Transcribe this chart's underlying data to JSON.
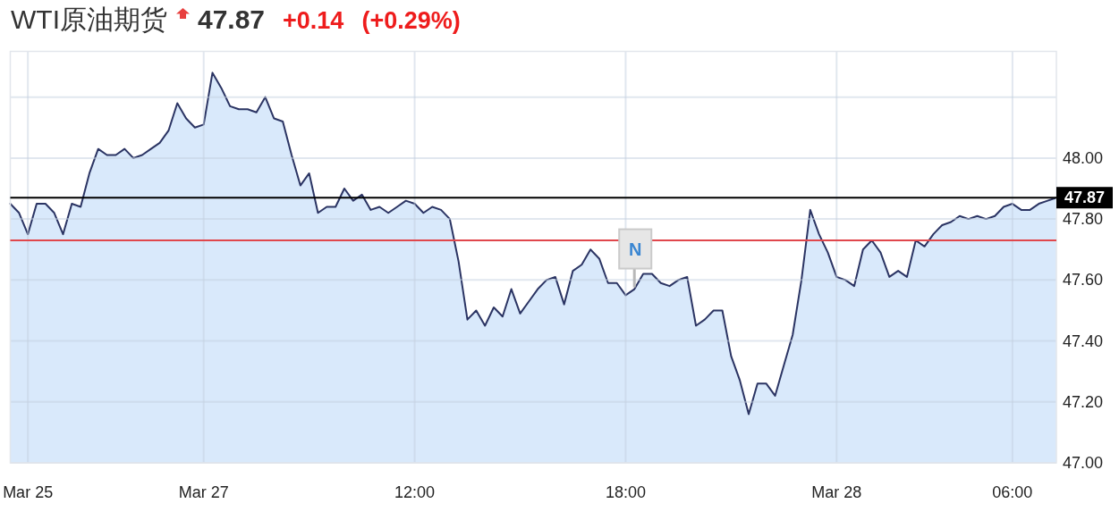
{
  "chart_data": {
    "type": "area",
    "title": "WTI原油期货",
    "annotations": [
      "47.87",
      "+0.14",
      "(+0.29%)",
      {
        "text": "N",
        "y": 47.57
      }
    ],
    "categories": [
      null,
      null,
      "Mar 25",
      null,
      null,
      null,
      null,
      null,
      null,
      null,
      null,
      null,
      null,
      null,
      null,
      null,
      null,
      null,
      null,
      null,
      null,
      null,
      "Mar 27",
      null,
      null,
      null,
      null,
      null,
      null,
      null,
      null,
      null,
      null,
      null,
      null,
      null,
      null,
      null,
      null,
      null,
      null,
      null,
      null,
      null,
      null,
      null,
      "12:00",
      null,
      null,
      null,
      null,
      null,
      null,
      null,
      null,
      null,
      null,
      null,
      null,
      null,
      null,
      null,
      null,
      null,
      null,
      null,
      null,
      null,
      null,
      null,
      "18:00",
      null,
      null,
      null,
      null,
      null,
      null,
      null,
      null,
      null,
      null,
      null,
      null,
      null,
      null,
      null,
      null,
      null,
      null,
      null,
      null,
      null,
      null,
      null,
      "Mar 28",
      null,
      null,
      null,
      null,
      null,
      null,
      null,
      null,
      null,
      null,
      null,
      null,
      null,
      null,
      null,
      null,
      null,
      null,
      null,
      "06:00",
      null,
      null,
      null,
      null,
      null
    ],
    "series": [
      {
        "color": "#2b3463",
        "values": [
          47.85,
          47.82,
          47.75,
          47.85,
          47.85,
          47.82,
          47.75,
          47.85,
          47.84,
          47.95,
          48.03,
          48.01,
          48.01,
          48.03,
          48.0,
          48.01,
          48.03,
          48.05,
          48.09,
          48.18,
          48.13,
          48.1,
          48.11,
          48.28,
          48.23,
          48.17,
          48.16,
          48.16,
          48.15,
          48.2,
          48.13,
          48.12,
          48.01,
          47.91,
          47.95,
          47.82,
          47.84,
          47.84,
          47.9,
          47.86,
          47.88,
          47.83,
          47.84,
          47.82,
          47.84,
          47.86,
          47.85,
          47.82,
          47.84,
          47.83,
          47.8,
          47.66,
          47.47,
          47.5,
          47.45,
          47.51,
          47.48,
          47.57,
          47.49,
          47.53,
          47.57,
          47.6,
          47.61,
          47.52,
          47.63,
          47.65,
          47.7,
          47.67,
          47.59,
          47.59,
          47.55,
          47.57,
          47.62,
          47.62,
          47.59,
          47.58,
          47.6,
          47.61,
          47.45,
          47.47,
          47.5,
          47.5,
          47.35,
          47.27,
          47.16,
          47.26,
          47.26,
          47.22,
          47.32,
          47.42,
          47.6,
          47.83,
          47.75,
          47.69,
          47.61,
          47.6,
          47.58,
          47.7,
          47.73,
          47.69,
          47.61,
          47.63,
          47.61,
          47.73,
          47.71,
          47.75,
          47.78,
          47.79,
          47.81,
          47.8,
          47.81,
          47.8,
          47.81,
          47.84,
          47.85,
          47.83,
          47.83,
          47.85,
          47.86,
          47.87
        ]
      }
    ],
    "ylim": [
      47.0,
      48.35
    ],
    "yticks": [
      {
        "value": 47,
        "label": "47.00"
      },
      {
        "value": 47.2,
        "label": "47.20"
      },
      {
        "value": 47.4,
        "label": "47.40"
      },
      {
        "value": 47.6,
        "label": "47.60"
      },
      {
        "value": 47.8,
        "label": "47.80"
      },
      {
        "value": 48,
        "label": "48.00"
      },
      {
        "value": 48.2,
        "label": null
      }
    ],
    "grid": true,
    "ref_lines": [
      {
        "axis": "y",
        "value": 47.87,
        "label": "47.87",
        "color": "#000000"
      },
      {
        "axis": "y",
        "value": 47.73,
        "color": "#e0474c"
      }
    ]
  }
}
